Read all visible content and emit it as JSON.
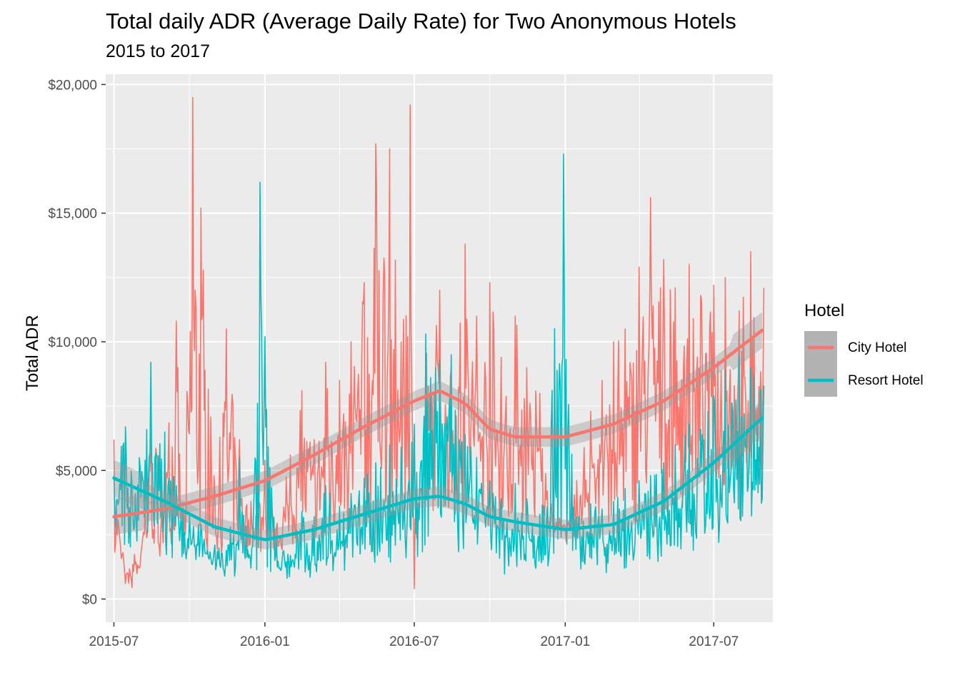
{
  "chart_data": {
    "type": "line",
    "title": "Total daily ADR (Average Daily Rate) for Two Anonymous Hotels",
    "subtitle": "2015 to 2017",
    "xlabel": "",
    "ylabel": "Total ADR",
    "x_range": [
      "2015-06-21",
      "2017-09-11"
    ],
    "ylim": [
      -900,
      20400
    ],
    "x_ticks": [
      {
        "date": "2015-07-01",
        "label": "2015-07"
      },
      {
        "date": "2016-01-01",
        "label": "2016-01"
      },
      {
        "date": "2016-07-01",
        "label": "2016-07"
      },
      {
        "date": "2017-01-01",
        "label": "2017-01"
      },
      {
        "date": "2017-07-01",
        "label": "2017-07"
      }
    ],
    "y_ticks": [
      {
        "value": 0,
        "label": "$0"
      },
      {
        "value": 5000,
        "label": "$5,000"
      },
      {
        "value": 10000,
        "label": "$10,000"
      },
      {
        "value": 15000,
        "label": "$15,000"
      },
      {
        "value": 20000,
        "label": "$20,000"
      }
    ],
    "grid": true,
    "legend": {
      "title": "Hotel",
      "placement": "right"
    },
    "series": [
      {
        "name": "City Hotel",
        "color": "#F8766D",
        "daily": [
          [
            "2015-07-01",
            6200
          ],
          [
            "2015-07-15",
            600
          ],
          [
            "2015-08-01",
            1200
          ],
          [
            "2015-08-15",
            7800
          ],
          [
            "2015-09-01",
            5200
          ],
          [
            "2015-09-15",
            10800
          ],
          [
            "2015-09-25",
            3400
          ],
          [
            "2015-10-05",
            19500
          ],
          [
            "2015-10-15",
            15200
          ],
          [
            "2015-11-01",
            4200
          ],
          [
            "2015-11-15",
            10500
          ],
          [
            "2015-12-01",
            6200
          ],
          [
            "2015-12-15",
            3800
          ],
          [
            "2016-01-01",
            5400
          ],
          [
            "2016-01-15",
            2800
          ],
          [
            "2016-02-01",
            5600
          ],
          [
            "2016-02-15",
            8100
          ],
          [
            "2016-03-01",
            6200
          ],
          [
            "2016-03-15",
            9200
          ],
          [
            "2016-04-01",
            8500
          ],
          [
            "2016-04-15",
            10000
          ],
          [
            "2016-05-01",
            12300
          ],
          [
            "2016-05-15",
            17700
          ],
          [
            "2016-06-01",
            17500
          ],
          [
            "2016-06-15",
            10000
          ],
          [
            "2016-06-26",
            19200
          ],
          [
            "2016-07-01",
            400
          ],
          [
            "2016-07-15",
            9500
          ],
          [
            "2016-08-01",
            12000
          ],
          [
            "2016-08-15",
            9000
          ],
          [
            "2016-09-01",
            13800
          ],
          [
            "2016-09-15",
            11000
          ],
          [
            "2016-10-01",
            12300
          ],
          [
            "2016-10-15",
            9400
          ],
          [
            "2016-11-01",
            11000
          ],
          [
            "2016-11-15",
            9000
          ],
          [
            "2016-12-01",
            8000
          ],
          [
            "2016-12-15",
            3700
          ],
          [
            "2017-01-01",
            2800
          ],
          [
            "2017-01-15",
            4600
          ],
          [
            "2017-02-01",
            7300
          ],
          [
            "2017-02-15",
            8500
          ],
          [
            "2017-03-01",
            10000
          ],
          [
            "2017-03-15",
            10500
          ],
          [
            "2017-04-01",
            12900
          ],
          [
            "2017-04-15",
            15600
          ],
          [
            "2017-05-01",
            13200
          ],
          [
            "2017-05-15",
            12100
          ],
          [
            "2017-06-01",
            13000
          ],
          [
            "2017-06-15",
            11800
          ],
          [
            "2017-07-01",
            12200
          ],
          [
            "2017-07-15",
            12500
          ],
          [
            "2017-08-01",
            11200
          ],
          [
            "2017-08-15",
            13500
          ],
          [
            "2017-08-31",
            12100
          ]
        ],
        "smooth": [
          [
            "2015-07-01",
            3200
          ],
          [
            "2015-09-01",
            3500
          ],
          [
            "2015-11-01",
            4000
          ],
          [
            "2016-01-01",
            4600
          ],
          [
            "2016-03-01",
            5600
          ],
          [
            "2016-05-01",
            6700
          ],
          [
            "2016-07-01",
            7700
          ],
          [
            "2016-08-01",
            8100
          ],
          [
            "2016-09-01",
            7600
          ],
          [
            "2016-10-01",
            6600
          ],
          [
            "2016-11-01",
            6300
          ],
          [
            "2017-01-01",
            6300
          ],
          [
            "2017-03-01",
            6800
          ],
          [
            "2017-05-01",
            7700
          ],
          [
            "2017-07-01",
            9000
          ],
          [
            "2017-08-31",
            10500
          ]
        ]
      },
      {
        "name": "Resort Hotel",
        "color": "#00BFC4",
        "daily": [
          [
            "2015-07-01",
            4800
          ],
          [
            "2015-07-15",
            6700
          ],
          [
            "2015-08-01",
            5500
          ],
          [
            "2015-08-15",
            9200
          ],
          [
            "2015-09-01",
            6500
          ],
          [
            "2015-09-15",
            4400
          ],
          [
            "2015-10-01",
            3300
          ],
          [
            "2015-10-15",
            2900
          ],
          [
            "2015-11-01",
            2100
          ],
          [
            "2015-11-15",
            1900
          ],
          [
            "2015-12-01",
            5500
          ],
          [
            "2015-12-15",
            1200
          ],
          [
            "2015-12-26",
            16200
          ],
          [
            "2016-01-01",
            10200
          ],
          [
            "2016-01-15",
            2400
          ],
          [
            "2016-02-01",
            1700
          ],
          [
            "2016-02-15",
            3400
          ],
          [
            "2016-03-01",
            3200
          ],
          [
            "2016-03-15",
            4400
          ],
          [
            "2016-04-01",
            3600
          ],
          [
            "2016-04-15",
            4100
          ],
          [
            "2016-05-01",
            4700
          ],
          [
            "2016-05-15",
            5300
          ],
          [
            "2016-06-01",
            6000
          ],
          [
            "2016-06-15",
            5900
          ],
          [
            "2016-07-01",
            6800
          ],
          [
            "2016-07-15",
            10300
          ],
          [
            "2016-08-01",
            9300
          ],
          [
            "2016-08-15",
            9500
          ],
          [
            "2016-09-01",
            6400
          ],
          [
            "2016-09-15",
            5500
          ],
          [
            "2016-10-01",
            4600
          ],
          [
            "2016-10-15",
            3900
          ],
          [
            "2016-11-01",
            4500
          ],
          [
            "2016-11-15",
            3900
          ],
          [
            "2016-12-01",
            3300
          ],
          [
            "2016-12-30",
            17300
          ],
          [
            "2017-01-15",
            3200
          ],
          [
            "2017-02-01",
            3700
          ],
          [
            "2017-02-15",
            3500
          ],
          [
            "2017-03-01",
            3800
          ],
          [
            "2017-03-15",
            4300
          ],
          [
            "2017-04-01",
            4600
          ],
          [
            "2017-04-15",
            4800
          ],
          [
            "2017-05-01",
            5300
          ],
          [
            "2017-05-15",
            6000
          ],
          [
            "2017-06-01",
            6800
          ],
          [
            "2017-06-15",
            6600
          ],
          [
            "2017-07-01",
            7900
          ],
          [
            "2017-07-15",
            8900
          ],
          [
            "2017-08-01",
            9400
          ],
          [
            "2017-08-15",
            9000
          ],
          [
            "2017-08-31",
            8300
          ]
        ],
        "smooth": [
          [
            "2015-07-01",
            4700
          ],
          [
            "2015-09-01",
            3800
          ],
          [
            "2015-11-01",
            2800
          ],
          [
            "2016-01-01",
            2300
          ],
          [
            "2016-03-01",
            2700
          ],
          [
            "2016-05-01",
            3300
          ],
          [
            "2016-07-01",
            3900
          ],
          [
            "2016-08-01",
            4000
          ],
          [
            "2016-09-01",
            3700
          ],
          [
            "2016-10-01",
            3200
          ],
          [
            "2016-11-01",
            3000
          ],
          [
            "2017-01-01",
            2700
          ],
          [
            "2017-03-01",
            2900
          ],
          [
            "2017-05-01",
            3800
          ],
          [
            "2017-07-01",
            5300
          ],
          [
            "2017-08-31",
            7100
          ]
        ]
      }
    ]
  }
}
